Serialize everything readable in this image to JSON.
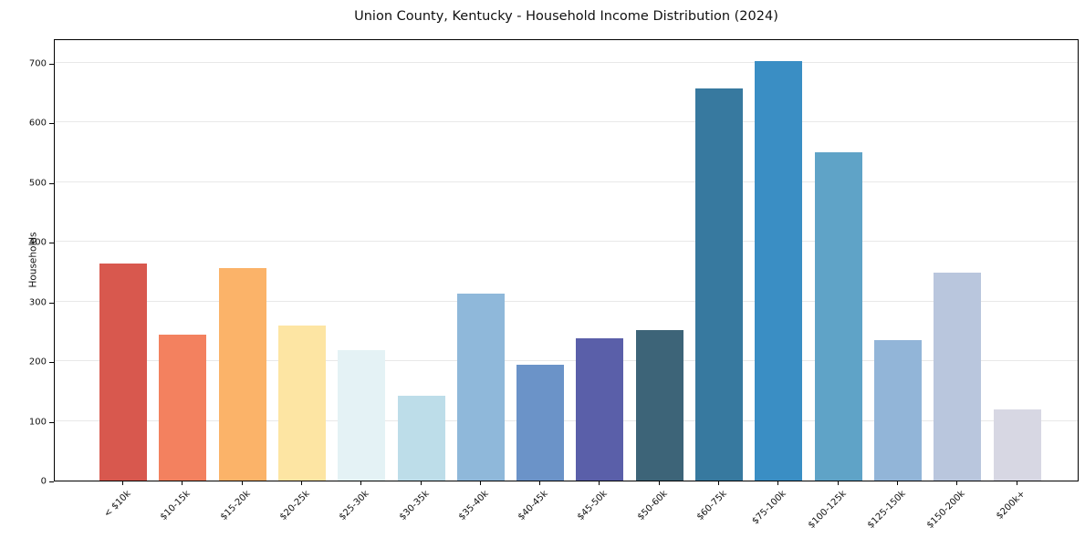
{
  "chart_data": {
    "type": "bar",
    "title": "Union County, Kentucky - Household Income Distribution (2024)",
    "xlabel": "",
    "ylabel": "Households",
    "categories": [
      "< $10k",
      "$10-15k",
      "$15-20k",
      "$20-25k",
      "$25-30k",
      "$30-35k",
      "$35-40k",
      "$40-45k",
      "$45-50k",
      "$50-60k",
      "$60-75k",
      "$75-100k",
      "$100-125k",
      "$125-150k",
      "$150-200k",
      "$200k+"
    ],
    "values": [
      364,
      245,
      356,
      260,
      218,
      142,
      313,
      194,
      238,
      252,
      657,
      703,
      551,
      235,
      348,
      119
    ],
    "bar_colors": [
      "#d8584e",
      "#f3815f",
      "#fbb369",
      "#fde5a3",
      "#e4f2f5",
      "#bddde9",
      "#8fb8da",
      "#6b93c8",
      "#5a5fa9",
      "#3d6478",
      "#37799f",
      "#3a8ec4",
      "#5fa3c7",
      "#92b5d8",
      "#b9c6dd",
      "#d7d7e3"
    ],
    "yticks": [
      0,
      100,
      200,
      300,
      400,
      500,
      600,
      700
    ],
    "ylim": [
      0,
      741
    ],
    "grid": "horizontal",
    "gridline_color": "#e8e8e8",
    "frame_color": "#000000",
    "background": "#ffffff",
    "legend_position": "none"
  }
}
